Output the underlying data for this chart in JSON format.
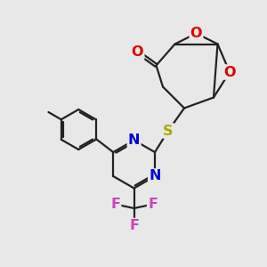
{
  "background_color": "#e8e8e8",
  "bond_color": "#222222",
  "bond_width": 1.6,
  "atom_colors": {
    "O": "#dd0000",
    "N": "#0000dd",
    "S": "#aaaa00",
    "F": "#cc44bb",
    "C": "#222222"
  },
  "font_size_atom": 11.5,
  "fig_w": 3.0,
  "fig_h": 3.0,
  "dpi": 100,
  "xlim": [
    0,
    10
  ],
  "ylim": [
    0,
    10
  ]
}
